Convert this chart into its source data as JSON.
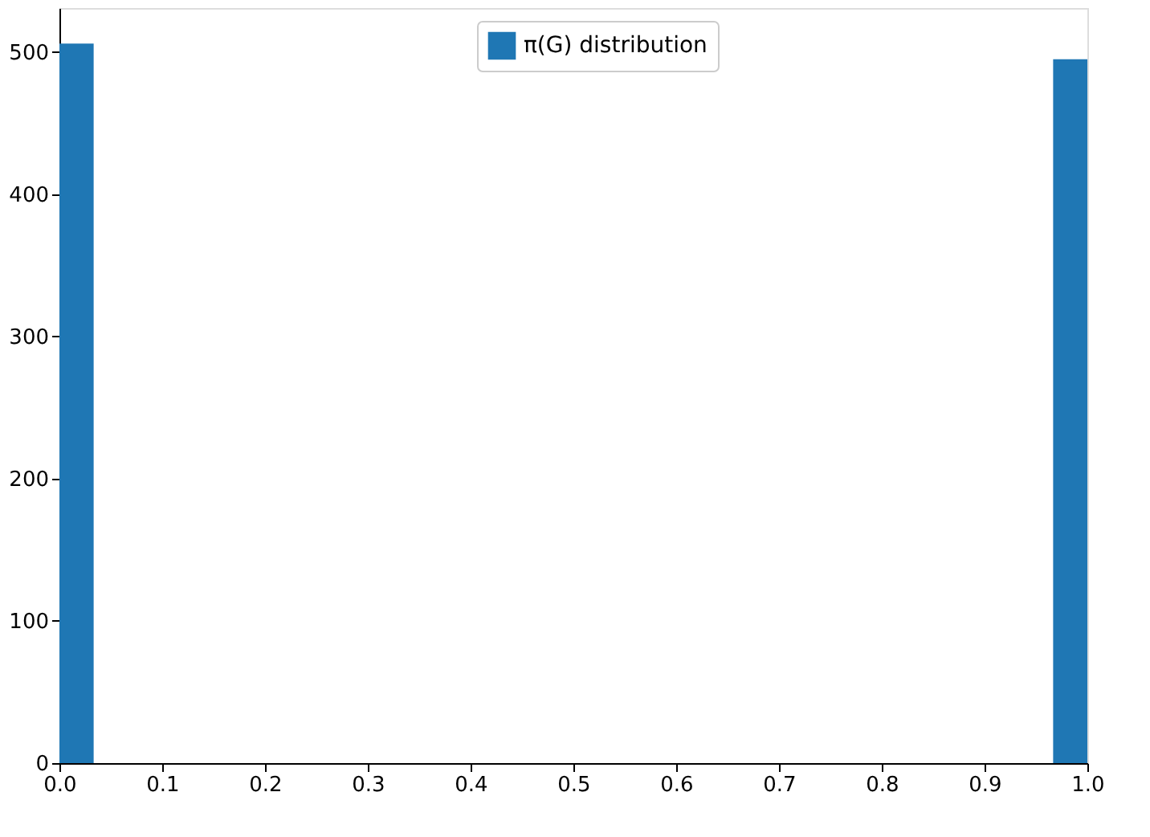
{
  "chart_data": {
    "type": "histogram",
    "bins": [
      0,
      0.0333,
      0.9667,
      1
    ],
    "series": [
      {
        "name": "π(G) distribution",
        "color": "#1f77b4",
        "values": [
          506,
          0,
          495
        ]
      }
    ],
    "xlim": [
      0,
      1
    ],
    "xticks": [
      {
        "value": 0,
        "label": "0.0"
      },
      0.1,
      0.2,
      0.3,
      0.4,
      0.5,
      0.6,
      0.7,
      0.8,
      0.9,
      {
        "value": 1,
        "label": "1.0"
      }
    ],
    "ylim": [
      0,
      531
    ],
    "yticks": [
      0,
      100,
      200,
      300,
      400,
      500
    ],
    "grid": false,
    "legend": "top"
  }
}
